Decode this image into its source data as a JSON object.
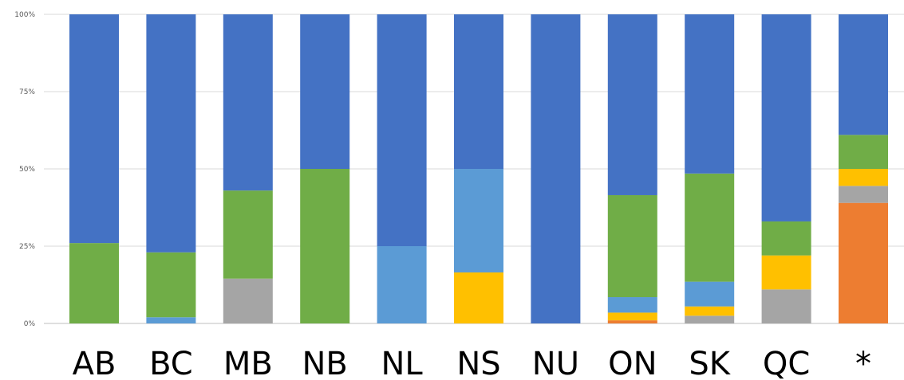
{
  "chart_data": {
    "type": "bar",
    "stacked": "percent",
    "categories": [
      "AB",
      "BC",
      "MB",
      "NB",
      "NL",
      "NS",
      "NU",
      "ON",
      "SK",
      "QC",
      "*"
    ],
    "y_ticks": [
      "0%",
      "25%",
      "50%",
      "75%",
      "100%"
    ],
    "ylim": [
      0,
      100
    ],
    "grid": true,
    "legend": "none",
    "series": [
      {
        "color": "#ED7D31",
        "values": [
          0,
          0,
          0,
          0,
          0,
          0,
          0,
          1,
          0,
          0,
          39
        ]
      },
      {
        "color": "#A5A5A5",
        "values": [
          0,
          0,
          14.5,
          0,
          0,
          0,
          0,
          0,
          2.5,
          11,
          5.5
        ]
      },
      {
        "color": "#FFC000",
        "values": [
          0,
          0,
          0,
          0,
          0,
          16.5,
          0,
          2.5,
          3,
          11,
          5.5
        ]
      },
      {
        "color": "#5B9BD5",
        "values": [
          0,
          2,
          0,
          0,
          25,
          33.5,
          0,
          5,
          8,
          0,
          0
        ]
      },
      {
        "color": "#70AD47",
        "values": [
          26,
          21,
          28.5,
          50,
          0,
          0,
          0,
          33,
          35,
          11,
          11
        ]
      },
      {
        "color": "#4472C4",
        "values": [
          74,
          77,
          57,
          50,
          75,
          50,
          100,
          58.5,
          51.5,
          67,
          39
        ]
      }
    ]
  }
}
